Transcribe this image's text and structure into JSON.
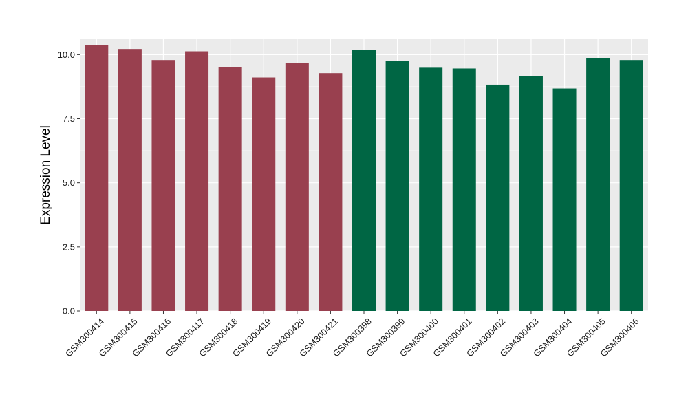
{
  "chart_data": {
    "type": "bar",
    "title": "",
    "xlabel": "",
    "ylabel": "Expression Level",
    "ylim": [
      0,
      10.6
    ],
    "yticks": [
      0,
      2.5,
      5,
      7.5,
      10
    ],
    "ytick_labels": [
      "0.0",
      "2.5",
      "5.0",
      "7.5",
      "10.0"
    ],
    "grid": true,
    "legend": "none",
    "categories": [
      "GSM300414",
      "GSM300415",
      "GSM300416",
      "GSM300417",
      "GSM300418",
      "GSM300419",
      "GSM300420",
      "GSM300421",
      "GSM300398",
      "GSM300399",
      "GSM300400",
      "GSM300401",
      "GSM300402",
      "GSM300403",
      "GSM300404",
      "GSM300405",
      "GSM300406"
    ],
    "values": [
      10.38,
      10.22,
      9.79,
      10.13,
      9.52,
      9.11,
      9.67,
      9.28,
      10.19,
      9.76,
      9.49,
      9.46,
      8.83,
      9.17,
      8.68,
      9.85,
      9.79
    ],
    "groups": [
      "1",
      "1",
      "1",
      "1",
      "1",
      "1",
      "1",
      "1",
      "2",
      "2",
      "2",
      "2",
      "2",
      "2",
      "2",
      "2",
      "2"
    ],
    "colors": {
      "1": "#99404f",
      "2": "#006644"
    },
    "panel_background": "#ebebeb",
    "gridline_color": "#ffffff"
  }
}
